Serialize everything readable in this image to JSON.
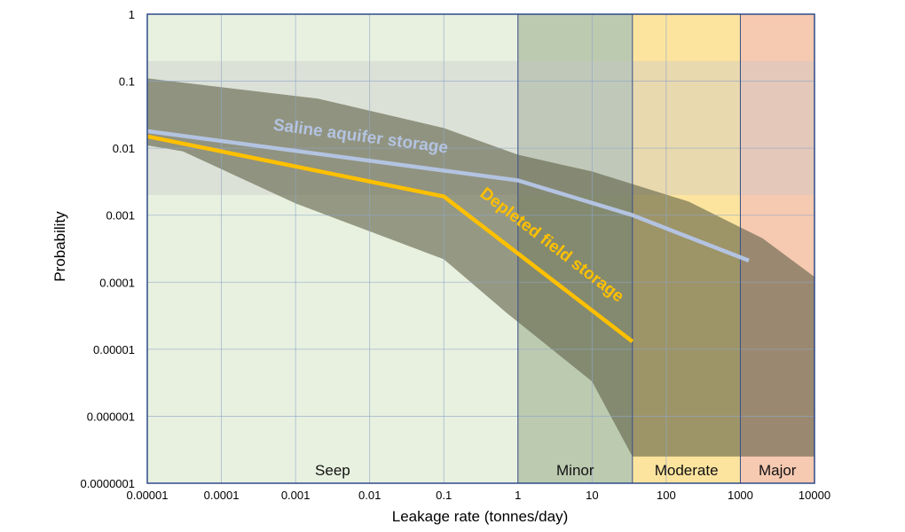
{
  "chart_data": {
    "type": "line",
    "xlabel": "Leakage rate (tonnes/day)",
    "ylabel": "Probability",
    "x_scale": "log",
    "y_scale": "log",
    "xlim": [
      1e-05,
      10000
    ],
    "ylim": [
      1e-07,
      1
    ],
    "x_ticks": [
      "0.00001",
      "0.0001",
      "0.001",
      "0.01",
      "0.1",
      "1",
      "10",
      "100",
      "1000",
      "10000"
    ],
    "y_ticks": [
      "0.0000001",
      "0.000001",
      "0.00001",
      "0.0001",
      "0.001",
      "0.01",
      "0.1",
      "1"
    ],
    "grid": true,
    "zones": [
      {
        "name": "Seep",
        "x_from": 1e-05,
        "x_to": 1,
        "color": "#e8f1e0"
      },
      {
        "name": "Minor",
        "x_from": 1,
        "x_to": 35,
        "color": "#bccab0"
      },
      {
        "name": "Moderate",
        "x_from": 35,
        "x_to": 1000,
        "color": "#fde49e"
      },
      {
        "name": "Major",
        "x_from": 1000,
        "x_to": 10000,
        "color": "#f6c9b1"
      }
    ],
    "horizontal_band": {
      "y_from": 0.002,
      "y_to": 0.2,
      "color": "#c8c8c8"
    },
    "uncertainty_band": {
      "color": "#5e5f44",
      "upper": [
        [
          1e-05,
          0.11
        ],
        [
          0.002,
          0.055
        ],
        [
          0.1,
          0.02
        ],
        [
          1,
          0.008
        ],
        [
          10,
          0.0045
        ],
        [
          200,
          0.0016
        ],
        [
          2000,
          0.00045
        ],
        [
          10000,
          0.00012
        ]
      ],
      "lower": [
        [
          1e-05,
          0.011
        ],
        [
          3e-05,
          0.009
        ],
        [
          0.001,
          0.0015
        ],
        [
          0.1,
          0.00022
        ],
        [
          0.7,
          3.5e-05
        ],
        [
          10,
          3.3e-06
        ],
        [
          35,
          2.5e-07
        ],
        [
          10000,
          2.5e-07
        ]
      ]
    },
    "series": [
      {
        "name": "Saline aquifer storage",
        "color": "#b3c3e1",
        "points": [
          [
            1e-05,
            0.018
          ],
          [
            1,
            0.0033
          ],
          [
            35,
            0.001
          ],
          [
            1300,
            0.00021
          ]
        ]
      },
      {
        "name": "Depleted field storage",
        "color": "#ffc000",
        "points": [
          [
            1e-05,
            0.015
          ],
          [
            0.1,
            0.0019
          ],
          [
            35,
            1.3e-05
          ]
        ]
      }
    ]
  }
}
